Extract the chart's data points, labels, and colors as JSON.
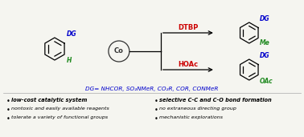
{
  "bg_color": "#f5f5f0",
  "dg_color": "#0000cc",
  "h_color": "#228B22",
  "me_color": "#228B22",
  "oac_color": "#228B22",
  "red_color": "#cc0000",
  "co_color": "#333333",
  "black": "#000000",
  "dg_label": "DG",
  "h_label": "H",
  "co_label": "Co",
  "dtbp_label": "DTBP",
  "hoac_label": "HOAc",
  "me_label": "Me",
  "oac_label": "OAc",
  "dg_line": "DG= NHCOR, SO₂NMeR, CO₂R, COR, CONMeR",
  "bullet1_bold": "low-cost catalytic system",
  "bullet2": "nontoxic and easily available reagents",
  "bullet3": "tolerate a variety of functional groups",
  "bullet4_bold": "selective C-C and C-O bond formation",
  "bullet5": "no extraneous directing group",
  "bullet6": "mechanistic explorations"
}
